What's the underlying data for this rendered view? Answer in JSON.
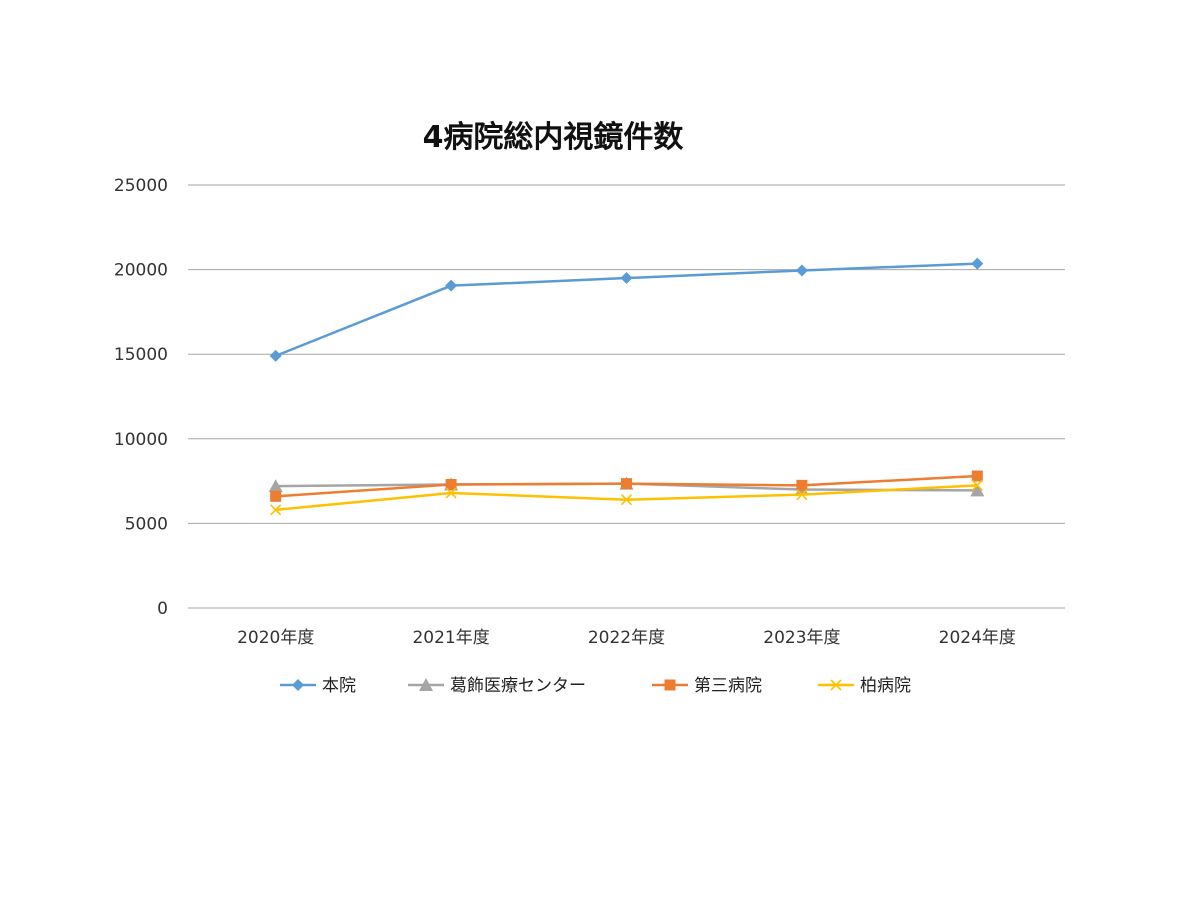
{
  "chart_data": {
    "type": "line",
    "title": "4病院総内視鏡件数",
    "xlabel": "",
    "ylabel": "",
    "categories": [
      "2020年度",
      "2021年度",
      "2022年度",
      "2023年度",
      "2024年度"
    ],
    "ylim": [
      0,
      25000
    ],
    "yticks": [
      0,
      5000,
      10000,
      15000,
      20000,
      25000
    ],
    "grid": true,
    "legend_position": "bottom",
    "series": [
      {
        "name": "本院",
        "values": [
          14900,
          19050,
          19500,
          19950,
          20350
        ],
        "color": "#5b9bd5",
        "marker": "diamond"
      },
      {
        "name": "葛飾医療センター",
        "values": [
          7200,
          7300,
          7350,
          7000,
          6950
        ],
        "color": "#a5a5a5",
        "marker": "triangle"
      },
      {
        "name": "第三病院",
        "values": [
          6600,
          7300,
          7350,
          7250,
          7800
        ],
        "color": "#ed7d31",
        "marker": "square"
      },
      {
        "name": "柏病院",
        "values": [
          5800,
          6800,
          6400,
          6700,
          7250
        ],
        "color": "#ffc000",
        "marker": "x"
      }
    ]
  }
}
